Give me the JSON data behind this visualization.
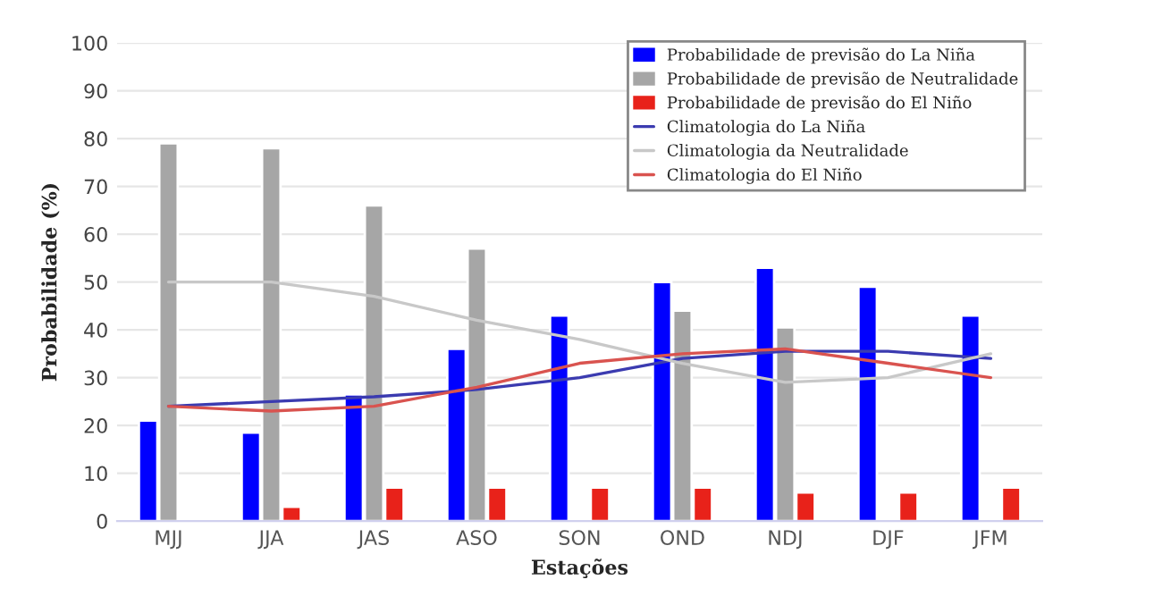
{
  "chart_data": {
    "type": "bar",
    "xlabel": "Estações",
    "ylabel": "Probabilidade (%)",
    "categories": [
      "MJJ",
      "JJA",
      "JAS",
      "ASO",
      "SON",
      "OND",
      "NDJ",
      "DJF",
      "JFM"
    ],
    "series": [
      {
        "name": "Probabilidade de previsão do La Niña",
        "color": "#0000ff",
        "values": [
          21,
          18.5,
          26.5,
          36,
          43,
          50,
          53,
          49,
          43
        ]
      },
      {
        "name": "Probabilidade de previsão de Neutralidade",
        "color": "#a6a6a6",
        "values": [
          79,
          78,
          66,
          57,
          null,
          44,
          40.5,
          null,
          null
        ]
      },
      {
        "name": "Probabilidade de previsão do El Niño",
        "color": "#e8221a",
        "values": [
          null,
          3,
          7,
          7,
          7,
          7,
          6,
          6,
          7
        ]
      },
      {
        "name": "Climatologia do La Niña",
        "type": "line",
        "color": "#3b3bb0",
        "values": [
          24,
          25,
          26,
          27.5,
          30,
          34,
          35.5,
          35.5,
          34
        ]
      },
      {
        "name": "Climatologia da Neutralidade",
        "type": "line",
        "color": "#c8c8c8",
        "values": [
          50,
          50,
          47,
          42,
          38,
          33,
          29,
          30,
          35
        ]
      },
      {
        "name": "Climatologia do El Niño",
        "type": "line",
        "color": "#d9534f",
        "values": [
          24,
          23,
          24,
          28,
          33,
          35,
          36,
          33,
          30
        ]
      }
    ],
    "ylim": [
      0,
      100
    ],
    "yticks": [
      0,
      10,
      20,
      30,
      40,
      50,
      60,
      70,
      80,
      90,
      100
    ],
    "grid": "y",
    "legend": "top right"
  }
}
